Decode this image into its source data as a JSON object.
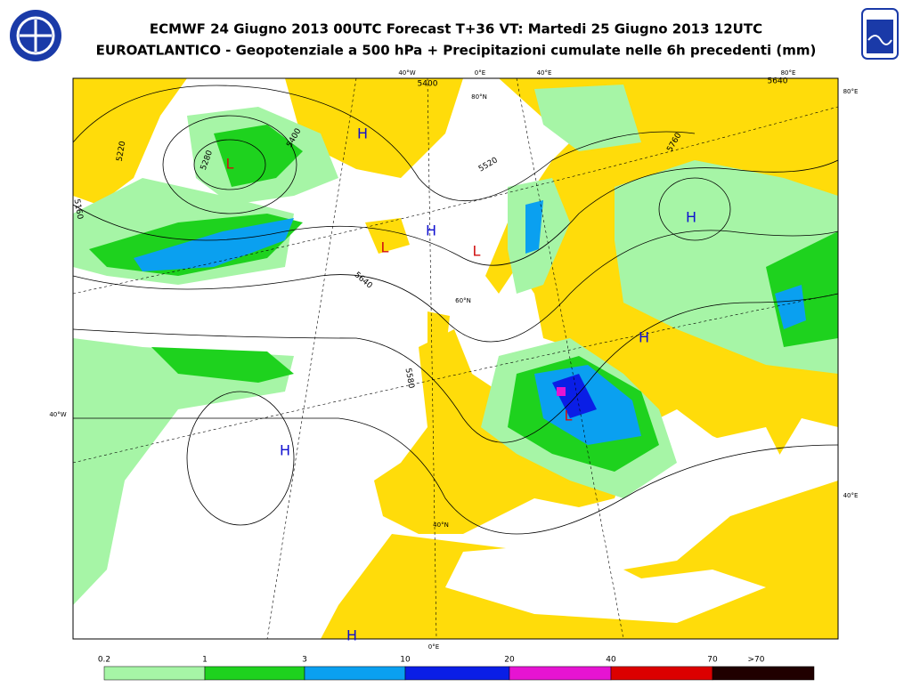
{
  "header": {
    "title": "ECMWF 24 Giugno 2013 00UTC Forecast T+36 VT: Martedi 25 Giugno 2013 12UTC",
    "subtitle": "EUROATLANTICO - Geopotenziale a 500 hPa + Precipitazioni cumulate nelle 6h precedenti (mm)"
  },
  "map": {
    "centers": [
      {
        "label": "H",
        "color": "#1010d0"
      },
      {
        "label": "L",
        "color": "#d01010"
      },
      {
        "label": "L",
        "color": "#d01010"
      },
      {
        "label": "H",
        "color": "#1010d0"
      },
      {
        "label": "L",
        "color": "#d01010"
      },
      {
        "label": "H",
        "color": "#1010d0"
      },
      {
        "label": "H",
        "color": "#1010d0"
      },
      {
        "label": "L",
        "color": "#d01010"
      },
      {
        "label": "H",
        "color": "#1010d0"
      },
      {
        "label": "H",
        "color": "#1010d0"
      }
    ],
    "contour_labels": [
      "5400",
      "5280",
      "5400",
      "5520",
      "5640",
      "5760",
      "5580",
      "5220",
      "5160",
      "5640"
    ],
    "grid_labels": [
      "40°W",
      "0°E",
      "40°E",
      "80°E",
      "80°E",
      "80°N",
      "60°N",
      "40°N",
      "40°W",
      "40°E",
      "0°E"
    ]
  },
  "legend": {
    "labels": [
      "0.2",
      "1",
      "3",
      "10",
      "20",
      "40",
      "70",
      ">70"
    ],
    "colors": [
      "#a6f5a6",
      "#1ed21e",
      "#0aa0f0",
      "#0a1ee6",
      "#e614d2",
      "#dc0000",
      "#200000"
    ]
  }
}
